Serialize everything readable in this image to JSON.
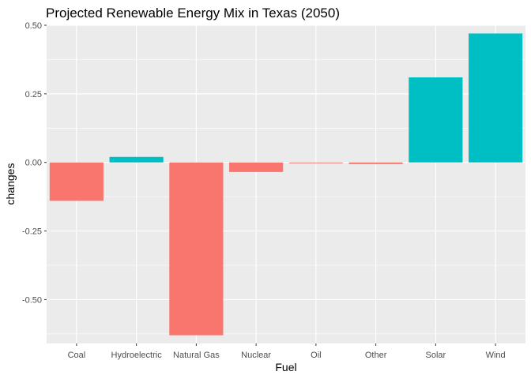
{
  "chart_data": {
    "type": "bar",
    "title": "Projected Renewable Energy Mix in Texas (2050)",
    "xlabel": "Fuel",
    "ylabel": "changes",
    "categories": [
      "Coal",
      "Hydroelectric",
      "Natural Gas",
      "Nuclear",
      "Oil",
      "Other",
      "Solar",
      "Wind"
    ],
    "values": [
      -0.14,
      0.02,
      -0.63,
      -0.035,
      -0.003,
      -0.006,
      0.31,
      0.47
    ],
    "ylim": [
      -0.66,
      0.5
    ],
    "yticks": [
      0.5,
      0.25,
      0,
      -0.25,
      -0.5
    ],
    "ytick_labels": [
      "0.50",
      "0.25",
      "0.00",
      "-0.25",
      "-0.50"
    ],
    "grid": true,
    "legend": "none",
    "colors": {
      "negative": "#F8766D",
      "positive": "#00BFC4",
      "panel": "#EBEBEB",
      "grid_major": "#FFFFFF"
    }
  }
}
